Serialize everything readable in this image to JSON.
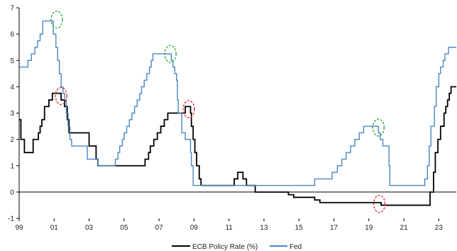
{
  "chart_data": {
    "type": "line",
    "grid": false,
    "legend_placement": "bottom-center",
    "xlim": [
      1999.0,
      2024.0
    ],
    "ylim": [
      -1,
      7
    ],
    "x_ticks": [
      1999,
      2001,
      2003,
      2005,
      2007,
      2009,
      2011,
      2013,
      2015,
      2017,
      2019,
      2021,
      2023
    ],
    "x_tick_labels": [
      "99",
      "01",
      "03",
      "05",
      "07",
      "09",
      "11",
      "13",
      "15",
      "17",
      "19",
      "21",
      "23"
    ],
    "y_ticks": [
      -1,
      0,
      1,
      2,
      3,
      4,
      5,
      6,
      7
    ],
    "y_tick_labels": [
      "-1",
      "0",
      "1",
      "2",
      "3",
      "4",
      "5",
      "6",
      "7"
    ],
    "series": [
      {
        "name": "ECB Policy Rate (%)",
        "color": "#000000",
        "points": [
          [
            1999.0,
            2.75
          ],
          [
            1999.1,
            2.0
          ],
          [
            1999.3,
            1.5
          ],
          [
            1999.8,
            2.0
          ],
          [
            2000.1,
            2.25
          ],
          [
            2000.2,
            2.5
          ],
          [
            2000.3,
            2.75
          ],
          [
            2000.45,
            3.25
          ],
          [
            2000.7,
            3.5
          ],
          [
            2000.9,
            3.75
          ],
          [
            2001.4,
            3.5
          ],
          [
            2001.6,
            3.25
          ],
          [
            2001.75,
            2.75
          ],
          [
            2001.85,
            2.25
          ],
          [
            2003.0,
            1.75
          ],
          [
            2003.4,
            1.25
          ],
          [
            2003.5,
            1.0
          ],
          [
            2006.0,
            1.0
          ],
          [
            2006.2,
            1.25
          ],
          [
            2006.4,
            1.5
          ],
          [
            2006.5,
            1.75
          ],
          [
            2006.7,
            2.0
          ],
          [
            2006.9,
            2.25
          ],
          [
            2007.1,
            2.5
          ],
          [
            2007.3,
            2.75
          ],
          [
            2007.5,
            3.0
          ],
          [
            2008.5,
            3.25
          ],
          [
            2008.8,
            3.0
          ],
          [
            2008.85,
            2.5
          ],
          [
            2008.95,
            2.0
          ],
          [
            2009.05,
            1.5
          ],
          [
            2009.15,
            1.0
          ],
          [
            2009.3,
            0.5
          ],
          [
            2009.4,
            0.25
          ],
          [
            2011.3,
            0.5
          ],
          [
            2011.5,
            0.75
          ],
          [
            2011.8,
            0.5
          ],
          [
            2012.0,
            0.25
          ],
          [
            2012.5,
            0.0
          ],
          [
            2014.4,
            -0.1
          ],
          [
            2014.7,
            -0.2
          ],
          [
            2015.9,
            -0.3
          ],
          [
            2016.2,
            -0.4
          ],
          [
            2019.7,
            -0.5
          ],
          [
            2022.5,
            0.0
          ],
          [
            2022.7,
            0.75
          ],
          [
            2022.8,
            1.5
          ],
          [
            2022.95,
            2.0
          ],
          [
            2023.1,
            2.5
          ],
          [
            2023.3,
            3.0
          ],
          [
            2023.4,
            3.25
          ],
          [
            2023.5,
            3.5
          ],
          [
            2023.6,
            3.75
          ],
          [
            2023.7,
            4.0
          ],
          [
            2024.0,
            4.0
          ]
        ]
      },
      {
        "name": "Fed",
        "color": "#4a86c1",
        "points": [
          [
            1999.0,
            4.75
          ],
          [
            1999.5,
            5.0
          ],
          [
            1999.7,
            5.25
          ],
          [
            1999.9,
            5.5
          ],
          [
            2000.05,
            5.75
          ],
          [
            2000.2,
            6.0
          ],
          [
            2000.35,
            6.5
          ],
          [
            2000.95,
            6.0
          ],
          [
            2001.1,
            5.5
          ],
          [
            2001.2,
            5.0
          ],
          [
            2001.3,
            4.5
          ],
          [
            2001.4,
            4.0
          ],
          [
            2001.5,
            3.75
          ],
          [
            2001.6,
            3.5
          ],
          [
            2001.7,
            3.0
          ],
          [
            2001.8,
            2.5
          ],
          [
            2001.9,
            2.0
          ],
          [
            2002.0,
            1.75
          ],
          [
            2002.9,
            1.25
          ],
          [
            2003.5,
            1.0
          ],
          [
            2004.5,
            1.25
          ],
          [
            2004.65,
            1.5
          ],
          [
            2004.75,
            1.75
          ],
          [
            2004.9,
            2.0
          ],
          [
            2005.0,
            2.25
          ],
          [
            2005.15,
            2.5
          ],
          [
            2005.3,
            2.75
          ],
          [
            2005.45,
            3.0
          ],
          [
            2005.6,
            3.25
          ],
          [
            2005.75,
            3.5
          ],
          [
            2005.9,
            3.75
          ],
          [
            2006.0,
            4.0
          ],
          [
            2006.15,
            4.25
          ],
          [
            2006.3,
            4.5
          ],
          [
            2006.45,
            4.75
          ],
          [
            2006.55,
            5.0
          ],
          [
            2006.65,
            5.25
          ],
          [
            2007.7,
            5.0
          ],
          [
            2007.8,
            4.75
          ],
          [
            2007.9,
            4.5
          ],
          [
            2008.0,
            4.25
          ],
          [
            2008.05,
            3.5
          ],
          [
            2008.1,
            3.0
          ],
          [
            2008.3,
            2.25
          ],
          [
            2008.5,
            2.0
          ],
          [
            2008.8,
            1.5
          ],
          [
            2008.85,
            1.0
          ],
          [
            2008.95,
            0.25
          ],
          [
            2015.9,
            0.5
          ],
          [
            2016.9,
            0.75
          ],
          [
            2017.2,
            1.0
          ],
          [
            2017.45,
            1.25
          ],
          [
            2017.7,
            1.5
          ],
          [
            2017.95,
            1.75
          ],
          [
            2018.2,
            2.0
          ],
          [
            2018.45,
            2.25
          ],
          [
            2018.7,
            2.5
          ],
          [
            2019.55,
            2.25
          ],
          [
            2019.65,
            2.0
          ],
          [
            2019.8,
            1.75
          ],
          [
            2020.15,
            1.0
          ],
          [
            2020.2,
            0.25
          ],
          [
            2022.2,
            0.5
          ],
          [
            2022.35,
            1.0
          ],
          [
            2022.45,
            1.75
          ],
          [
            2022.55,
            2.5
          ],
          [
            2022.75,
            3.25
          ],
          [
            2022.85,
            4.0
          ],
          [
            2023.0,
            4.5
          ],
          [
            2023.1,
            4.75
          ],
          [
            2023.25,
            5.0
          ],
          [
            2023.35,
            5.25
          ],
          [
            2023.55,
            5.5
          ],
          [
            2024.0,
            5.5
          ]
        ]
      }
    ],
    "annotations": [
      {
        "shape": "dashed-ellipse",
        "color": "#2eaa3c",
        "x": 2001.15,
        "y": 6.55
      },
      {
        "shape": "dashed-ellipse",
        "color": "#2eaa3c",
        "x": 2007.65,
        "y": 5.25
      },
      {
        "shape": "dashed-ellipse",
        "color": "#2eaa3c",
        "x": 2019.55,
        "y": 2.45
      },
      {
        "shape": "dashed-ellipse",
        "color": "#e03030",
        "x": 2001.4,
        "y": 3.65
      },
      {
        "shape": "dashed-ellipse",
        "color": "#e03030",
        "x": 2008.7,
        "y": 3.15
      },
      {
        "shape": "dashed-ellipse",
        "color": "#e03030",
        "x": 2019.6,
        "y": -0.45
      }
    ]
  }
}
